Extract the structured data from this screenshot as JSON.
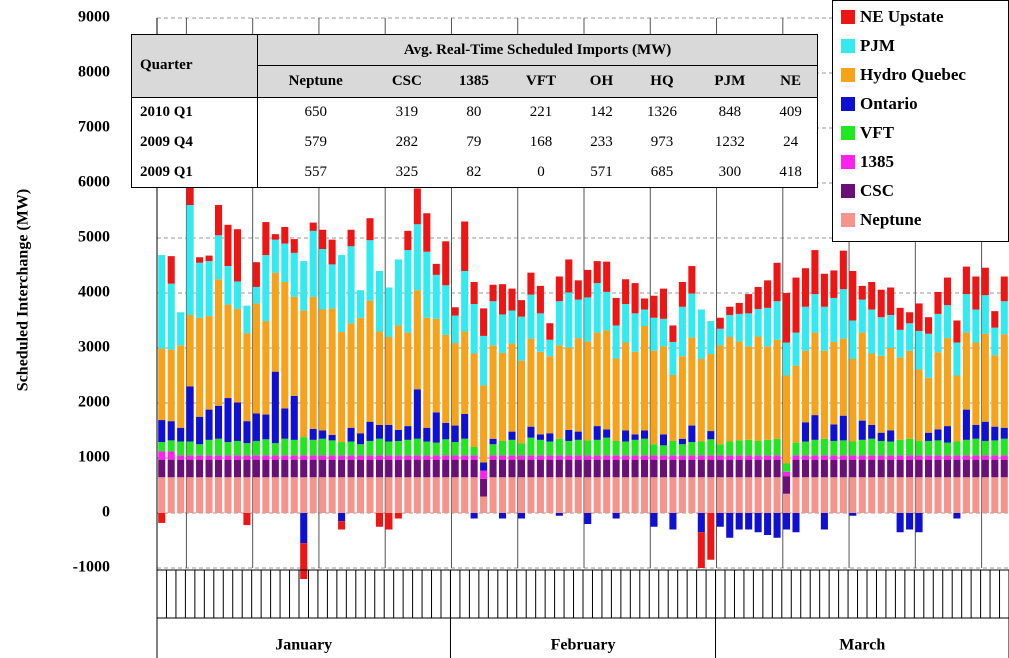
{
  "chart_data": {
    "type": "stacked_bar",
    "y_label": "Scheduled Interchange (MW)",
    "ylim": [
      -1000,
      9000
    ],
    "yticks": [
      -1000,
      0,
      1000,
      2000,
      3000,
      4000,
      5000,
      6000,
      7000,
      8000,
      9000
    ],
    "grid": true,
    "legend": "top-right",
    "categories": [
      null,
      null,
      null,
      null,
      null,
      null,
      null,
      null,
      null,
      null,
      null,
      null,
      null,
      null,
      null,
      null,
      null,
      null,
      null,
      null,
      null,
      null,
      null,
      null,
      null,
      null,
      null,
      null,
      null,
      null,
      null,
      null,
      null,
      null,
      null,
      null,
      null,
      null,
      null,
      null,
      null,
      null,
      null,
      null,
      null,
      null,
      null,
      null,
      null,
      null,
      null,
      null,
      null,
      null,
      null,
      null,
      null,
      null,
      null,
      null,
      null,
      null,
      null,
      null,
      null,
      null,
      null,
      null,
      null,
      null,
      null,
      null,
      null,
      null,
      null,
      null,
      null,
      null,
      null,
      null,
      null,
      null,
      null,
      null,
      null,
      null,
      null,
      null,
      null,
      null
    ],
    "x_groups": [
      {
        "label": "January",
        "count": 31
      },
      {
        "label": "February",
        "count": 28
      },
      {
        "label": "March",
        "count": 31
      }
    ],
    "series": [
      {
        "name": "Neptune",
        "color": "#f4948c",
        "values": [
          650,
          650,
          650,
          650,
          650,
          650,
          650,
          650,
          650,
          650,
          650,
          650,
          650,
          650,
          650,
          650,
          650,
          650,
          650,
          650,
          650,
          650,
          650,
          650,
          650,
          650,
          650,
          650,
          650,
          650,
          650,
          650,
          650,
          650,
          300,
          650,
          650,
          650,
          650,
          650,
          650,
          650,
          650,
          650,
          650,
          650,
          650,
          650,
          650,
          650,
          650,
          650,
          650,
          650,
          650,
          650,
          650,
          650,
          650,
          650,
          650,
          650,
          650,
          650,
          650,
          650,
          350,
          650,
          650,
          650,
          650,
          650,
          650,
          650,
          650,
          650,
          650,
          650,
          650,
          650,
          650,
          650,
          650,
          650,
          650,
          650,
          650,
          650,
          650,
          650
        ]
      },
      {
        "name": "CSC",
        "color": "#6b0f78",
        "values": [
          320,
          320,
          320,
          320,
          320,
          320,
          320,
          320,
          320,
          320,
          320,
          320,
          320,
          320,
          320,
          320,
          320,
          320,
          320,
          320,
          320,
          320,
          320,
          320,
          320,
          320,
          320,
          320,
          320,
          320,
          320,
          320,
          320,
          320,
          320,
          320,
          320,
          320,
          320,
          320,
          320,
          320,
          320,
          320,
          320,
          320,
          320,
          320,
          320,
          320,
          320,
          320,
          320,
          320,
          320,
          320,
          320,
          320,
          320,
          320,
          320,
          320,
          320,
          320,
          320,
          320,
          320,
          320,
          320,
          320,
          320,
          320,
          320,
          320,
          320,
          320,
          320,
          320,
          320,
          320,
          320,
          320,
          320,
          320,
          320,
          320,
          320,
          320,
          320,
          320
        ]
      },
      {
        "name": "1385",
        "color": "#ff22ee",
        "values": [
          150,
          150,
          80,
          80,
          80,
          80,
          80,
          80,
          80,
          80,
          80,
          80,
          80,
          80,
          80,
          80,
          80,
          80,
          80,
          80,
          80,
          80,
          80,
          80,
          80,
          80,
          80,
          80,
          80,
          80,
          80,
          80,
          80,
          80,
          150,
          80,
          80,
          80,
          80,
          80,
          80,
          80,
          80,
          80,
          80,
          80,
          80,
          80,
          80,
          80,
          80,
          80,
          80,
          80,
          80,
          80,
          80,
          80,
          80,
          80,
          80,
          80,
          80,
          80,
          80,
          80,
          80,
          80,
          80,
          80,
          80,
          80,
          80,
          80,
          80,
          80,
          80,
          80,
          80,
          80,
          80,
          80,
          80,
          80,
          80,
          80,
          80,
          80,
          80,
          80
        ]
      },
      {
        "name": "VFT",
        "color": "#22e622",
        "values": [
          170,
          200,
          250,
          250,
          200,
          280,
          300,
          240,
          260,
          220,
          260,
          290,
          220,
          300,
          280,
          330,
          280,
          300,
          270,
          240,
          250,
          200,
          260,
          300,
          250,
          260,
          280,
          300,
          250,
          230,
          290,
          240,
          300,
          150,
          0,
          200,
          260,
          280,
          220,
          320,
          280,
          250,
          300,
          260,
          280,
          270,
          280,
          320,
          260,
          250,
          280,
          300,
          200,
          180,
          260,
          200,
          240,
          250,
          290,
          200,
          250,
          270,
          280,
          260,
          280,
          300,
          150,
          230,
          250,
          280,
          300,
          260,
          270,
          250,
          280,
          300,
          260,
          250,
          280,
          300,
          260,
          260,
          270,
          230,
          250,
          280,
          300,
          260,
          270,
          300
        ]
      },
      {
        "name": "Ontario",
        "color": "#1010d2",
        "values": [
          400,
          350,
          250,
          1000,
          500,
          550,
          600,
          800,
          700,
          400,
          500,
          450,
          1300,
          550,
          800,
          -550,
          200,
          150,
          100,
          -150,
          250,
          200,
          350,
          250,
          300,
          200,
          250,
          900,
          250,
          550,
          300,
          300,
          450,
          -100,
          150,
          100,
          -100,
          150,
          -100,
          200,
          100,
          150,
          -50,
          200,
          150,
          -200,
          250,
          150,
          -100,
          200,
          100,
          150,
          -250,
          200,
          -300,
          100,
          300,
          -350,
          150,
          -250,
          -450,
          -300,
          -300,
          -350,
          -400,
          -450,
          -300,
          -350,
          350,
          450,
          -300,
          300,
          450,
          -50,
          350,
          250,
          150,
          200,
          -350,
          -300,
          -350,
          150,
          200,
          300,
          -100,
          550,
          250,
          350,
          250,
          200
        ]
      },
      {
        "name": "Hydro Quebec",
        "color": "#f7a21b",
        "values": [
          1300,
          1300,
          1500,
          1300,
          1800,
          1700,
          2300,
          1700,
          1700,
          1600,
          2000,
          1700,
          1800,
          2300,
          1800,
          2300,
          2400,
          2200,
          2300,
          2000,
          1900,
          2100,
          2200,
          1700,
          1600,
          1900,
          1700,
          1800,
          2000,
          1700,
          1600,
          1500,
          1500,
          1700,
          1400,
          1700,
          1600,
          1600,
          1500,
          1600,
          1500,
          1400,
          1700,
          1500,
          1700,
          1800,
          1700,
          1800,
          1500,
          1600,
          1500,
          1900,
          1700,
          1600,
          1200,
          1500,
          1600,
          1500,
          1400,
          1800,
          1900,
          1800,
          1700,
          1900,
          1700,
          1800,
          1600,
          1400,
          1300,
          1500,
          1600,
          1500,
          1400,
          1500,
          1600,
          1300,
          1400,
          1500,
          1500,
          1600,
          1300,
          1000,
          1400,
          1600,
          1200,
          1400,
          1500,
          1600,
          1300,
          1700
        ]
      },
      {
        "name": "PJM",
        "color": "#33eaf0",
        "values": [
          1700,
          1200,
          600,
          2000,
          1000,
          1000,
          800,
          700,
          500,
          500,
          300,
          1200,
          600,
          700,
          800,
          900,
          1200,
          1100,
          800,
          1400,
          1400,
          500,
          1100,
          1100,
          900,
          1200,
          1500,
          1200,
          1200,
          800,
          900,
          500,
          1100,
          900,
          900,
          800,
          700,
          600,
          800,
          800,
          700,
          300,
          800,
          1000,
          700,
          800,
          900,
          700,
          600,
          700,
          700,
          300,
          600,
          500,
          600,
          900,
          800,
          900,
          600,
          300,
          400,
          500,
          600,
          500,
          700,
          700,
          600,
          600,
          800,
          700,
          800,
          800,
          900,
          700,
          600,
          800,
          700,
          600,
          500,
          500,
          700,
          800,
          700,
          600,
          600,
          700,
          600,
          700,
          500,
          600
        ]
      },
      {
        "name": "NE Upstate",
        "color": "#ee1515",
        "values": [
          -180,
          500,
          0,
          350,
          100,
          100,
          550,
          750,
          950,
          -220,
          450,
          600,
          100,
          300,
          250,
          -650,
          150,
          350,
          450,
          -150,
          300,
          0,
          400,
          -250,
          -300,
          -100,
          350,
          650,
          700,
          200,
          800,
          150,
          900,
          400,
          500,
          300,
          550,
          400,
          300,
          400,
          500,
          300,
          450,
          600,
          350,
          500,
          400,
          550,
          500,
          450,
          550,
          200,
          400,
          550,
          300,
          450,
          500,
          -650,
          -850,
          200,
          150,
          200,
          350,
          400,
          500,
          700,
          900,
          1000,
          700,
          800,
          600,
          500,
          700,
          900,
          250,
          500,
          500,
          500,
          400,
          200,
          500,
          300,
          400,
          500,
          400,
          500,
          600,
          500,
          300,
          450
        ]
      }
    ],
    "table": {
      "header": "Quarter",
      "title": "Avg. Real-Time Scheduled Imports (MW)",
      "columns": [
        "Neptune",
        "CSC",
        "1385",
        "VFT",
        "OH",
        "HQ",
        "PJM",
        "NE"
      ],
      "rows": [
        {
          "label": "2010 Q1",
          "values": [
            650,
            319,
            80,
            221,
            142,
            1326,
            848,
            409
          ]
        },
        {
          "label": "2009 Q4",
          "values": [
            579,
            282,
            79,
            168,
            233,
            973,
            1232,
            24
          ]
        },
        {
          "label": "2009 Q1",
          "values": [
            557,
            325,
            82,
            0,
            571,
            685,
            300,
            418
          ]
        }
      ]
    }
  }
}
